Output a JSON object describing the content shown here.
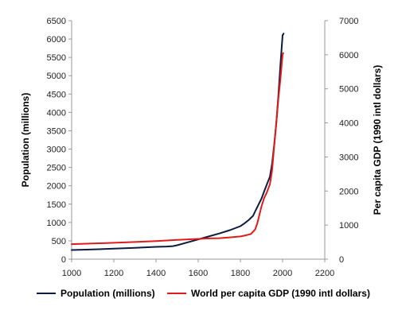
{
  "chart_data": {
    "type": "line",
    "xlabel": "",
    "ylabel": "Population (millions)",
    "y2label": "Per capita GDP (1990 intl dollars)",
    "xlim": [
      1000,
      2200
    ],
    "ylim": [
      0,
      6500
    ],
    "y2lim": [
      0,
      7000
    ],
    "x_ticks": [
      1000,
      1200,
      1400,
      1600,
      1800,
      2000,
      2200
    ],
    "y_ticks": [
      0,
      500,
      1000,
      1500,
      2000,
      2500,
      3000,
      3500,
      4000,
      4500,
      5000,
      5500,
      6000,
      6500
    ],
    "y2_ticks": [
      0,
      1000,
      2000,
      3000,
      4000,
      5000,
      6000,
      7000
    ],
    "grid": false,
    "legend_position": "bottom",
    "series": [
      {
        "name": "Population (millions)",
        "axis": "left",
        "color": "#0d1b3e",
        "x": [
          1000,
          1100,
          1200,
          1300,
          1400,
          1450,
          1480,
          1500,
          1550,
          1600,
          1650,
          1700,
          1750,
          1800,
          1820,
          1840,
          1860,
          1870,
          1900,
          1913,
          1925,
          1940,
          1950,
          1960,
          1970,
          1980,
          1990,
          2000,
          2005
        ],
        "values": [
          250,
          265,
          285,
          310,
          335,
          345,
          355,
          380,
          460,
          540,
          620,
          700,
          790,
          900,
          980,
          1070,
          1180,
          1300,
          1650,
          1850,
          2030,
          2250,
          2600,
          3100,
          3700,
          4450,
          5300,
          6100,
          6150
        ]
      },
      {
        "name": "World per capita GDP (1990 intl dollars)",
        "axis": "right",
        "color": "#e01b1b",
        "x": [
          1000,
          1100,
          1200,
          1300,
          1400,
          1500,
          1550,
          1600,
          1650,
          1700,
          1750,
          1800,
          1820,
          1850,
          1870,
          1880,
          1890,
          1900,
          1913,
          1925,
          1940,
          1950,
          1960,
          1970,
          1980,
          1990,
          2000,
          2003
        ],
        "values": [
          440,
          460,
          480,
          505,
          530,
          565,
          580,
          596,
          610,
          615,
          640,
          667,
          690,
          740,
          870,
          1050,
          1300,
          1550,
          1800,
          1950,
          2200,
          2600,
          3300,
          4000,
          4700,
          5300,
          6000,
          6050
        ]
      }
    ]
  }
}
